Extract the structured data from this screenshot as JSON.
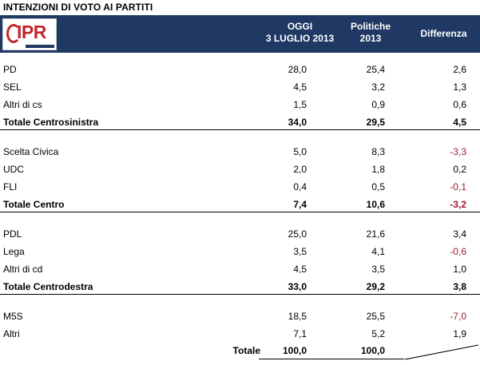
{
  "title": "INTENZIONI DI VOTO AI PARTITI",
  "logo": {
    "text": "IPR"
  },
  "header": {
    "col1_line1": "OGGI",
    "col1_line2": "3 LUGLIO 2013",
    "col2_line1": "Politiche",
    "col2_line2": "2013",
    "col3": "Differenza"
  },
  "groups": [
    {
      "rows": [
        {
          "label": "PD",
          "oggi": "28,0",
          "politiche": "25,4",
          "diff": "2,6"
        },
        {
          "label": "SEL",
          "oggi": "4,5",
          "politiche": "3,2",
          "diff": "1,3"
        },
        {
          "label": "Altri di cs",
          "oggi": "1,5",
          "politiche": "0,9",
          "diff": "0,6"
        }
      ],
      "total": {
        "label": "Totale Centrosinistra",
        "oggi": "34,0",
        "politiche": "29,5",
        "diff": "4,5"
      }
    },
    {
      "rows": [
        {
          "label": "Scelta Civica",
          "oggi": "5,0",
          "politiche": "8,3",
          "diff": "-3,3"
        },
        {
          "label": "UDC",
          "oggi": "2,0",
          "politiche": "1,8",
          "diff": "0,2"
        },
        {
          "label": "FLI",
          "oggi": "0,4",
          "politiche": "0,5",
          "diff": "-0,1"
        }
      ],
      "total": {
        "label": "Totale  Centro",
        "oggi": "7,4",
        "politiche": "10,6",
        "diff": "-3,2"
      }
    },
    {
      "rows": [
        {
          "label": "PDL",
          "oggi": "25,0",
          "politiche": "21,6",
          "diff": "3,4"
        },
        {
          "label": "Lega",
          "oggi": "3,5",
          "politiche": "4,1",
          "diff": "-0,6"
        },
        {
          "label": "Altri di cd",
          "oggi": "4,5",
          "politiche": "3,5",
          "diff": "1,0"
        }
      ],
      "total": {
        "label": "Totale Centrodestra",
        "oggi": "33,0",
        "politiche": "29,2",
        "diff": "3,8"
      }
    },
    {
      "rows": [
        {
          "label": "M5S",
          "oggi": "18,5",
          "politiche": "25,5",
          "diff": "-7,0"
        },
        {
          "label": "Altri",
          "oggi": "7,1",
          "politiche": "5,2",
          "diff": "1,9"
        }
      ]
    }
  ],
  "grand_total": {
    "label": "Totale",
    "oggi": "100,0",
    "politiche": "100,0"
  },
  "colors": {
    "header_bg": "#1f3864",
    "negative": "#9b1c2c",
    "logo_red": "#c0272d"
  }
}
